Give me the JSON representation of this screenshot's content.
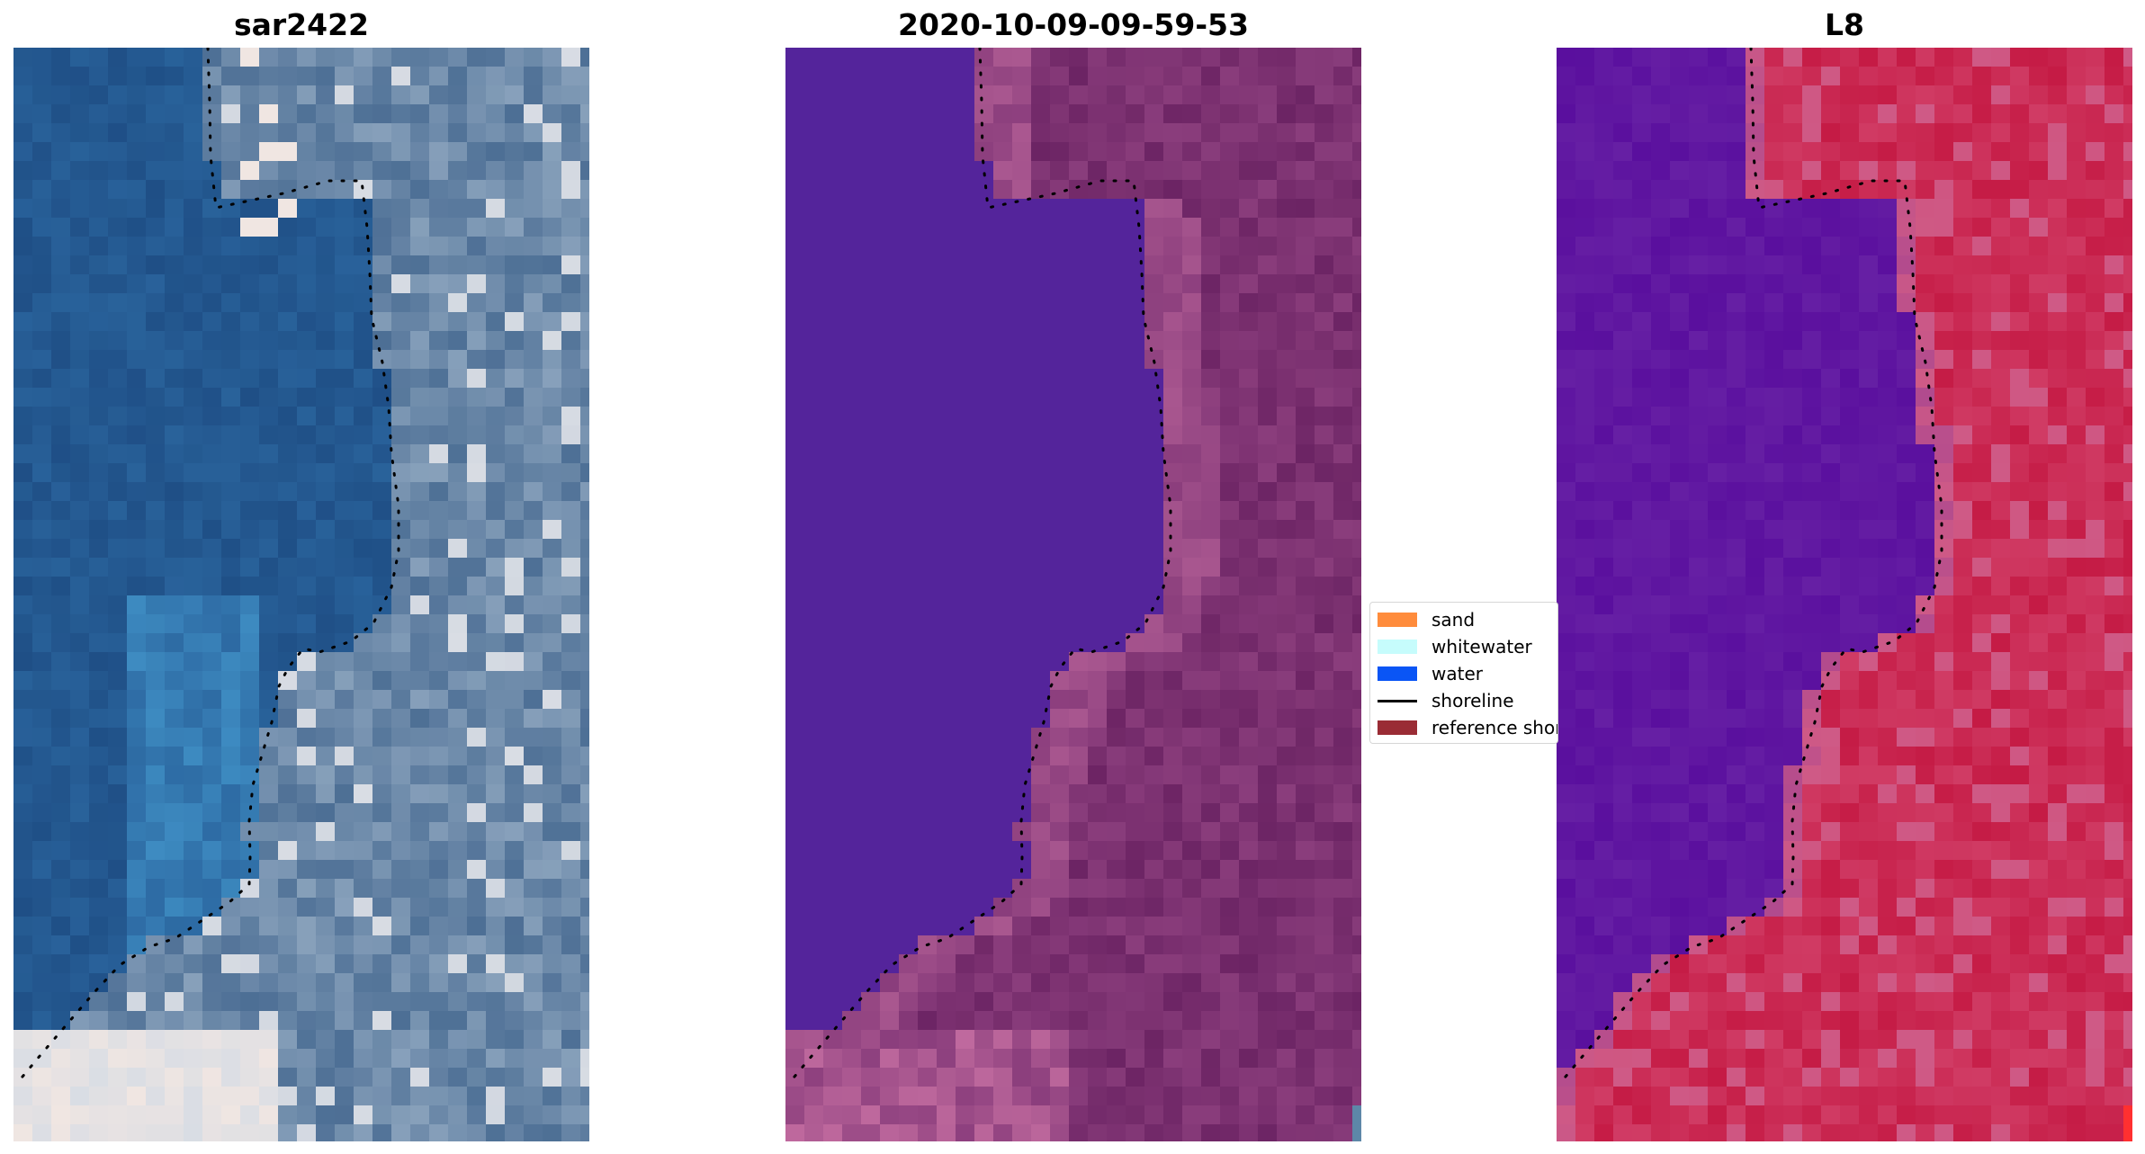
{
  "panels": [
    {
      "title": "sar2422",
      "style": "true-color",
      "colors": {
        "water_deep": "#1f4f86",
        "water_mid": "#2d6aa3",
        "water_shallow": "#3e8cc2",
        "land_dark": "#4d6f95",
        "land_light": "#8ea6bf",
        "bright": "#d9dde4",
        "sand_bright": "#f0e6e2"
      }
    },
    {
      "title": "2020-10-09-09-59-53",
      "style": "classified",
      "colors": {
        "water": "#54249b",
        "land_dark": "#6c2464",
        "land_mid": "#8a3d7c",
        "land_light": "#c06a9e",
        "edge": "#5d87a8"
      }
    },
    {
      "title": "L8",
      "style": "index",
      "colors": {
        "water": "#5a0f9e",
        "water_light": "#6e2aa8",
        "transition": "#b04a8e",
        "land": "#c51b45",
        "land_light": "#d2416a",
        "land_pink": "#cf5a86",
        "hot": "#ff3030"
      }
    }
  ],
  "shoreline_color": "#000000",
  "legend": {
    "items": [
      {
        "label": "sand",
        "color": "#ff8c3c",
        "kind": "patch"
      },
      {
        "label": "whitewater",
        "color": "#c6fcfc",
        "kind": "patch"
      },
      {
        "label": "water",
        "color": "#0a55f5",
        "kind": "patch"
      },
      {
        "label": "shoreline",
        "color": "#000000",
        "kind": "line"
      },
      {
        "label": "reference shoreline",
        "color": "#9a2c35",
        "kind": "patch"
      }
    ]
  }
}
